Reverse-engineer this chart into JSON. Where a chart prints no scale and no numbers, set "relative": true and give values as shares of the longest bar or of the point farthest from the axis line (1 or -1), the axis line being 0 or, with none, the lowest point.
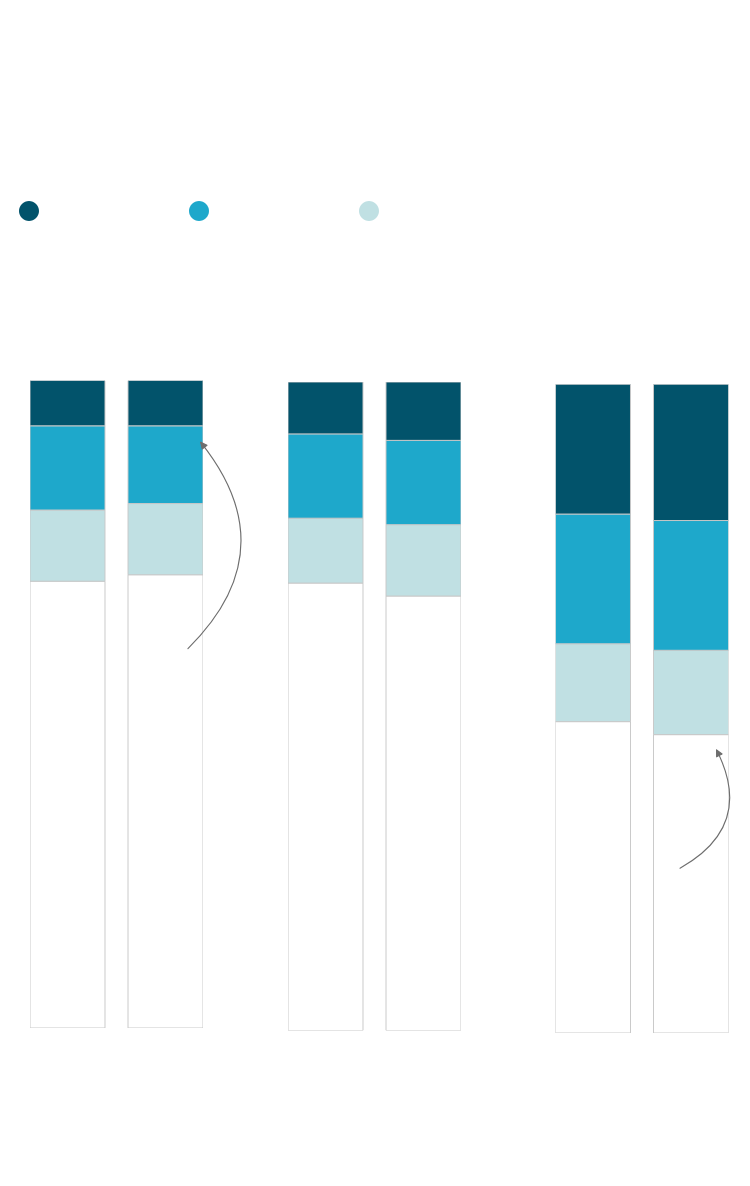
{
  "chart_data": [
    {
      "type": "bar",
      "stacked": true,
      "relative": true,
      "tick_labels": false,
      "categories": [
        null,
        null
      ],
      "series": [
        {
          "color": "#ffffff",
          "values": [
            0.69,
            0.7
          ]
        },
        {
          "color": "#c0e0e3",
          "values": [
            0.11,
            0.11
          ]
        },
        {
          "color": "#1ea8cb",
          "values": [
            0.13,
            0.12
          ]
        },
        {
          "color": "#02536b",
          "values": [
            0.07,
            0.07
          ]
        }
      ]
    },
    {
      "type": "bar",
      "stacked": true,
      "relative": true,
      "tick_labels": false,
      "categories": [
        null,
        null
      ],
      "series": [
        {
          "color": "#ffffff",
          "values": [
            0.69,
            0.67
          ]
        },
        {
          "color": "#c0e0e3",
          "values": [
            0.1,
            0.11
          ]
        },
        {
          "color": "#1ea8cb",
          "values": [
            0.13,
            0.13
          ]
        },
        {
          "color": "#02536b",
          "values": [
            0.08,
            0.09
          ]
        }
      ]
    },
    {
      "type": "bar",
      "stacked": true,
      "relative": true,
      "tick_labels": false,
      "categories": [
        null,
        null
      ],
      "series": [
        {
          "color": "#ffffff",
          "values": [
            0.48,
            0.46
          ]
        },
        {
          "color": "#c0e0e3",
          "values": [
            0.12,
            0.13
          ]
        },
        {
          "color": "#1ea8cb",
          "values": [
            0.2,
            0.2
          ]
        },
        {
          "color": "#02536b",
          "values": [
            0.2,
            0.21
          ]
        }
      ]
    }
  ]
}
